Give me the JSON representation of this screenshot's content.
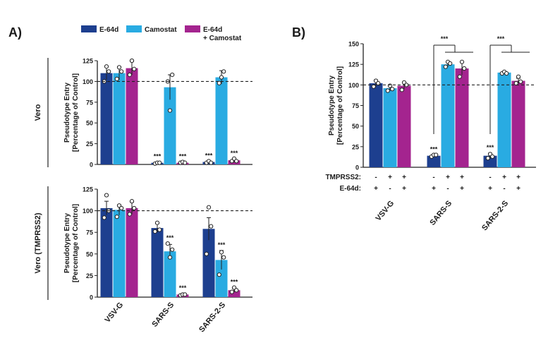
{
  "panel_labels": [
    "A)",
    "B)"
  ],
  "colors": {
    "e64d": "#1d3f8f",
    "camostat": "#29abe2",
    "both": "#a4248f"
  },
  "legend": [
    {
      "label": "E-64d",
      "color": "#1d3f8f"
    },
    {
      "label": "Camostat",
      "color": "#29abe2"
    },
    {
      "label": "E-64d\n+ Camostat",
      "color": "#a4248f"
    }
  ],
  "chart_data": [
    {
      "type": "bar",
      "panel": "A)",
      "row_label": "Vero",
      "ylabel": "Pseudotype Entry\n[Percentage of Control]",
      "ylim": [
        0,
        125
      ],
      "yticks": [
        0,
        25,
        50,
        75,
        100,
        125
      ],
      "reference_line": 100,
      "categories": [
        "VSV-G",
        "SARS-S",
        "SARS-2-S"
      ],
      "series": [
        {
          "name": "E-64d",
          "values": [
            110,
            2,
            3
          ],
          "errors": [
            8,
            1,
            1
          ],
          "points": [
            [
              100,
              118,
              112
            ],
            [
              1,
              2,
              2
            ],
            [
              2,
              4,
              2
            ]
          ],
          "annotations": [
            "",
            "***",
            "***"
          ]
        },
        {
          "name": "Camostat",
          "values": [
            110,
            93,
            105
          ],
          "errors": [
            8,
            15,
            8
          ],
          "points": [
            [
              103,
              117,
              112
            ],
            [
              100,
              65,
              108
            ],
            [
              98,
              105,
              112
            ]
          ],
          "annotations": [
            "",
            "",
            ""
          ]
        },
        {
          "name": "E-64d\n+ Camostat",
          "values": [
            116,
            2,
            5
          ],
          "errors": [
            8,
            1,
            2
          ],
          "points": [
            [
              108,
              125,
              115
            ],
            [
              2,
              3,
              2
            ],
            [
              4,
              7,
              4
            ]
          ],
          "annotations": [
            "",
            "***",
            "***"
          ]
        }
      ]
    },
    {
      "type": "bar",
      "panel": "A)",
      "row_label": "Vero (TMPRSS2)",
      "ylabel": "Pseudotype Entry\n[Percentage of Control]",
      "ylim": [
        0,
        125
      ],
      "yticks": [
        0,
        25,
        50,
        75,
        100,
        125
      ],
      "reference_line": 100,
      "categories": [
        "VSV-G",
        "SARS-S",
        "SARS-2-S"
      ],
      "xticklabels": [
        "VSV-G",
        "SARS-S",
        "SARS-2-S"
      ],
      "series": [
        {
          "name": "E-64d",
          "values": [
            103,
            80,
            79
          ],
          "errors": [
            8,
            5,
            13
          ],
          "points": [
            [
              92,
              118,
              100
            ],
            [
              76,
              86,
              78
            ],
            [
              50,
              104,
              82
            ]
          ],
          "annotations": [
            "",
            "",
            ""
          ]
        },
        {
          "name": "Camostat",
          "values": [
            101,
            53,
            43
          ],
          "errors": [
            6,
            8,
            11
          ],
          "points": [
            [
              93,
              106,
              103
            ],
            [
              62,
              46,
              55
            ],
            [
              26,
              52,
              46
            ]
          ],
          "annotations": [
            "",
            "***",
            "***"
          ]
        },
        {
          "name": "E-64d\n+ Camostat",
          "values": [
            103,
            3,
            8
          ],
          "errors": [
            7,
            1,
            2
          ],
          "points": [
            [
              96,
              111,
              103
            ],
            [
              2,
              3,
              3
            ],
            [
              6,
              11,
              8
            ]
          ],
          "annotations": [
            "",
            "***",
            "***"
          ]
        }
      ]
    },
    {
      "type": "bar",
      "panel": "B)",
      "ylabel": "Pseudotype Entry\n[Percentage of Control]",
      "ylim": [
        0,
        150
      ],
      "yticks": [
        0,
        25,
        50,
        75,
        100,
        125,
        150
      ],
      "reference_line": 100,
      "categories": [
        "VSV-G",
        "SARS-S",
        "SARS-2-S"
      ],
      "xticklabels": [
        "VSV-G",
        "SARS-S",
        "SARS-2-S"
      ],
      "condition_rows": [
        {
          "label": "TMPRSS2:",
          "values": [
            "-",
            "+",
            "+"
          ]
        },
        {
          "label": "E-64d:",
          "values": [
            "+",
            "-",
            "+"
          ]
        }
      ],
      "series": [
        {
          "name": "E-64d",
          "values": [
            102,
            14,
            14
          ],
          "errors": [
            4,
            1,
            3
          ],
          "points": [
            [
              98,
              105,
              102
            ],
            [
              13,
              15,
              15
            ],
            [
              11,
              16,
              13
            ]
          ],
          "annotations": [
            "",
            "***",
            "***"
          ]
        },
        {
          "name": "Camostat",
          "values": [
            96,
            125,
            115
          ],
          "errors": [
            3,
            3,
            1
          ],
          "points": [
            [
              93,
              99,
              95
            ],
            [
              122,
              128,
              126
            ],
            [
              114,
              116,
              114
            ]
          ],
          "annotations": [
            "",
            "",
            ""
          ]
        },
        {
          "name": "E-64d\n+ Camostat",
          "values": [
            99,
            120,
            105
          ],
          "errors": [
            4,
            8,
            3
          ],
          "points": [
            [
              94,
              103,
              100
            ],
            [
              110,
              128,
              120
            ],
            [
              102,
              110,
              104
            ]
          ],
          "annotations": [
            "",
            "",
            ""
          ]
        }
      ],
      "significance": [
        {
          "category": "SARS-S",
          "label": "***"
        },
        {
          "category": "SARS-2-S",
          "label": "***"
        }
      ]
    }
  ]
}
